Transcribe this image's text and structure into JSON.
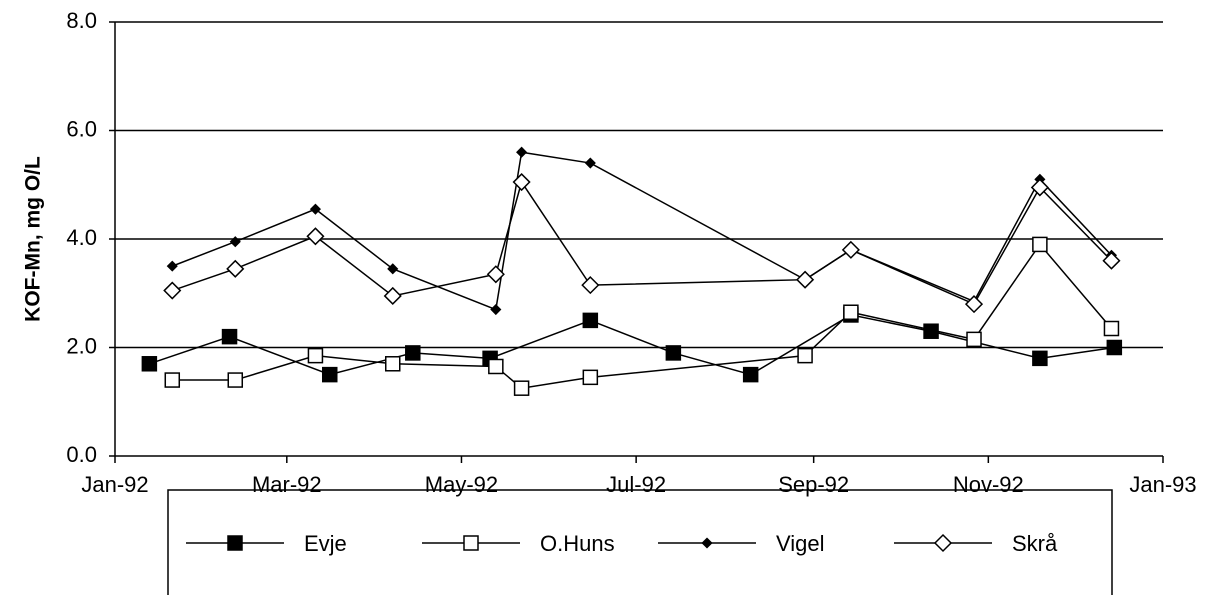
{
  "chart_data": {
    "type": "line",
    "y_label": "KOF-Mn, mg O/L",
    "xlim": [
      0,
      366
    ],
    "xticks": [
      {
        "value": 0,
        "label": "Jan-92"
      },
      {
        "value": 60,
        "label": "Mar-92"
      },
      {
        "value": 121,
        "label": "May-92"
      },
      {
        "value": 182,
        "label": "Jul-92"
      },
      {
        "value": 244,
        "label": "Sep-92"
      },
      {
        "value": 305,
        "label": "Nov-92"
      },
      {
        "value": 366,
        "label": "Jan-93"
      }
    ],
    "ylim": [
      0,
      8
    ],
    "yticks": [
      {
        "value": 0,
        "label": "0.0"
      },
      {
        "value": 2,
        "label": "2.0"
      },
      {
        "value": 4,
        "label": "4.0"
      },
      {
        "value": 6,
        "label": "6.0"
      },
      {
        "value": 8,
        "label": "8.0"
      }
    ],
    "grid": true,
    "legend": "bottom",
    "series": [
      {
        "name": "Evje",
        "color": "#000000",
        "marker": "square",
        "filled": true,
        "x": [
          12,
          40,
          75,
          104,
          131,
          166,
          195,
          222,
          257,
          285,
          323,
          349
        ],
        "values": [
          1.7,
          2.2,
          1.5,
          1.9,
          1.8,
          2.5,
          1.9,
          1.5,
          2.6,
          2.3,
          1.8,
          2.0
        ]
      },
      {
        "name": "O.Huns",
        "color": "#000000",
        "marker": "square",
        "filled": false,
        "x": [
          20,
          42,
          70,
          97,
          133,
          142,
          166,
          241,
          257,
          300,
          323,
          348
        ],
        "values": [
          1.4,
          1.4,
          1.85,
          1.7,
          1.65,
          1.25,
          1.45,
          1.85,
          2.65,
          2.15,
          3.9,
          2.35
        ]
      },
      {
        "name": "Vigel",
        "color": "#000000",
        "marker": "diamond-small",
        "filled": true,
        "x": [
          20,
          42,
          70,
          97,
          133,
          142,
          166,
          241,
          257,
          300,
          323,
          348
        ],
        "values": [
          3.5,
          3.95,
          4.55,
          3.45,
          2.7,
          5.6,
          5.4,
          3.25,
          3.8,
          2.85,
          5.1,
          3.7
        ]
      },
      {
        "name": "Skrå",
        "color": "#000000",
        "marker": "diamond",
        "filled": false,
        "x": [
          20,
          42,
          70,
          97,
          133,
          142,
          166,
          241,
          257,
          300,
          323,
          348
        ],
        "values": [
          3.05,
          3.45,
          4.05,
          2.95,
          3.35,
          5.05,
          3.15,
          3.25,
          3.8,
          2.8,
          4.95,
          3.6
        ]
      }
    ]
  }
}
